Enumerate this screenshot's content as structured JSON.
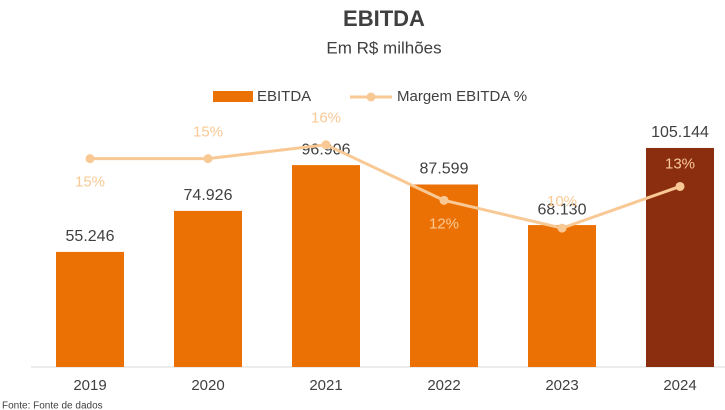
{
  "chart_data": {
    "type": "combo",
    "title": "EBITDA",
    "subtitle": "Em R$ milhões",
    "source": "Fonte: Fonte de dados",
    "categories": [
      "2019",
      "2020",
      "2021",
      "2022",
      "2023",
      "2024"
    ],
    "ylim": [
      0,
      120000
    ],
    "y2lim": [
      0,
      18
    ],
    "legend": "top",
    "series": [
      {
        "name": "EBITDA",
        "type": "bar",
        "color": "#ec7105",
        "colors": [
          "#ec7105",
          "#ec7105",
          "#ec7105",
          "#ec7105",
          "#ec7105",
          "#8b2e10"
        ],
        "values": [
          55246,
          74926,
          96906,
          87599,
          68130,
          105144
        ],
        "value_labels": [
          "55.246",
          "74.926",
          "96.906",
          "87.599",
          "68.130",
          "105.144"
        ]
      },
      {
        "name": "Margem EBITDA %",
        "type": "line",
        "axis": "y2",
        "color": "#f9c995",
        "values": [
          15,
          15,
          16,
          12,
          10,
          13
        ],
        "value_labels": [
          "15%",
          "15%",
          "16%",
          "12%",
          "10%",
          "13%"
        ]
      }
    ]
  }
}
